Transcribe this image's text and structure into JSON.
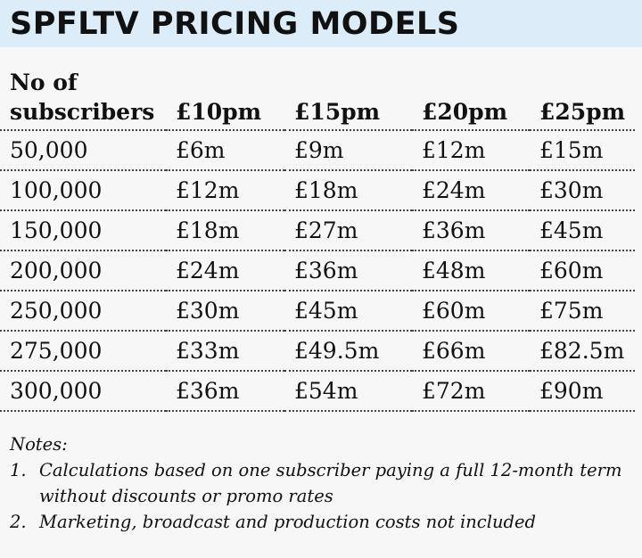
{
  "title": "SPFLTV PRICING MODELS",
  "table": {
    "headers": {
      "subscribers_line1": "No of",
      "subscribers_line2": "subscribers",
      "prices": [
        "£10pm",
        "£15pm",
        "£20pm",
        "£25pm"
      ]
    },
    "rows": [
      {
        "subscribers": "50,000",
        "values": [
          "£6m",
          "£9m",
          "£12m",
          "£15m"
        ]
      },
      {
        "subscribers": "100,000",
        "values": [
          "£12m",
          "£18m",
          "£24m",
          "£30m"
        ]
      },
      {
        "subscribers": "150,000",
        "values": [
          "£18m",
          "£27m",
          "£36m",
          "£45m"
        ]
      },
      {
        "subscribers": "200,000",
        "values": [
          "£24m",
          "£36m",
          "£48m",
          "£60m"
        ]
      },
      {
        "subscribers": "250,000",
        "values": [
          "£30m",
          "£45m",
          "£60m",
          "£75m"
        ]
      },
      {
        "subscribers": "275,000",
        "values": [
          "£33m",
          "£49.5m",
          "£66m",
          "£82.5m"
        ]
      },
      {
        "subscribers": "300,000",
        "values": [
          "£36m",
          "£54m",
          "£72m",
          "£90m"
        ]
      }
    ]
  },
  "notes": {
    "heading": "Notes:",
    "items": [
      {
        "num": "1.",
        "text": "Calculations based on one subscriber paying a full 12-month term without discounts or promo rates"
      },
      {
        "num": "2.",
        "text": "Marketing, broadcast and production costs not included"
      }
    ]
  },
  "colors": {
    "title_bg": "#dcecf8",
    "page_bg": "#f7f7f7",
    "text": "#111111"
  }
}
